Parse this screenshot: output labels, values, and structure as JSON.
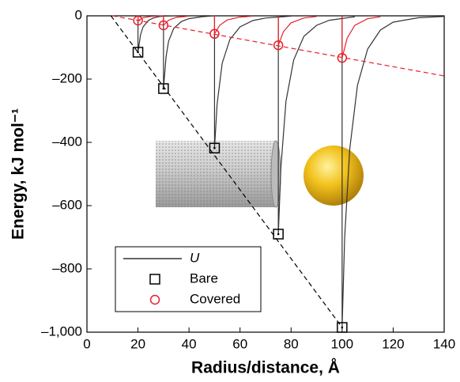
{
  "chart_data": {
    "type": "line",
    "xlabel": "Radius/distance, Å",
    "ylabel": "Energy, kJ mol⁻¹",
    "xlim": [
      0,
      140
    ],
    "ylim": [
      -1000,
      0
    ],
    "xticks": [
      0,
      20,
      40,
      60,
      80,
      100,
      120,
      140
    ],
    "yticks": [
      0,
      {
        "value": -200,
        "label": "–200"
      },
      {
        "value": -400,
        "label": "–400"
      },
      {
        "value": -600,
        "label": "–600"
      },
      {
        "value": -800,
        "label": "–800"
      },
      {
        "value": -1000,
        "label": "–1,000"
      }
    ],
    "legend": "lower left",
    "series": [
      {
        "name": "U",
        "color": "#333333",
        "lines": [
          {
            "x": [
              20,
              20,
              21,
              22,
              24,
              26,
              28,
              30,
              35
            ],
            "values": [
              0,
              -115,
              -60,
              -35,
              -15,
              -7,
              -3,
              -1,
              0
            ]
          },
          {
            "x": [
              30,
              30,
              31,
              32,
              34,
              37,
              40,
              45,
              50
            ],
            "values": [
              0,
              -230,
              -130,
              -80,
              -40,
              -18,
              -9,
              -3,
              0
            ]
          },
          {
            "x": [
              50,
              50,
              51,
              53,
              56,
              60,
              65,
              70,
              80
            ],
            "values": [
              0,
              -418,
              -280,
              -150,
              -75,
              -35,
              -15,
              -7,
              -1
            ]
          },
          {
            "x": [
              75,
              75,
              76,
              78,
              81,
              85,
              90,
              95,
              105
            ],
            "values": [
              0,
              -690,
              -480,
              -270,
              -140,
              -65,
              -30,
              -14,
              -3
            ]
          },
          {
            "x": [
              100,
              100,
              101,
              103,
              106,
              110,
              115,
              120,
              130,
              140
            ],
            "values": [
              0,
              -985,
              -700,
              -420,
              -220,
              -105,
              -45,
              -20,
              -6,
              -2
            ]
          }
        ]
      },
      {
        "name": "Bare",
        "color": "#000000",
        "marker": "square",
        "x": [
          20,
          30,
          50,
          75,
          100
        ],
        "values": [
          -115,
          -230,
          -418,
          -690,
          -985
        ],
        "fit": {
          "x": [
            9.4,
            100
          ],
          "values": [
            0,
            -985
          ]
        }
      },
      {
        "name": "Covered",
        "color": "#e8202a",
        "marker": "circle",
        "x": [
          20,
          30,
          50,
          75,
          100
        ],
        "values": [
          -15,
          -30,
          -57,
          -93,
          -133
        ],
        "fit": {
          "x": [
            10,
            140
          ],
          "values": [
            0,
            -190
          ]
        },
        "lines": [
          {
            "x": [
              20,
              20,
              22,
              25,
              30
            ],
            "values": [
              0,
              -15,
              -6,
              -2,
              0
            ]
          },
          {
            "x": [
              30,
              30,
              32,
              35,
              40
            ],
            "values": [
              0,
              -30,
              -14,
              -5,
              -1
            ]
          },
          {
            "x": [
              50,
              50,
              52,
              55,
              60,
              65
            ],
            "values": [
              0,
              -57,
              -30,
              -13,
              -4,
              -1
            ]
          },
          {
            "x": [
              75,
              75,
              77,
              80,
              85,
              90
            ],
            "values": [
              0,
              -93,
              -50,
              -22,
              -7,
              -2
            ]
          },
          {
            "x": [
              100,
              100,
              102,
              105,
              110,
              115
            ],
            "values": [
              0,
              -133,
              -70,
              -30,
              -9,
              -3
            ]
          }
        ]
      }
    ]
  }
}
